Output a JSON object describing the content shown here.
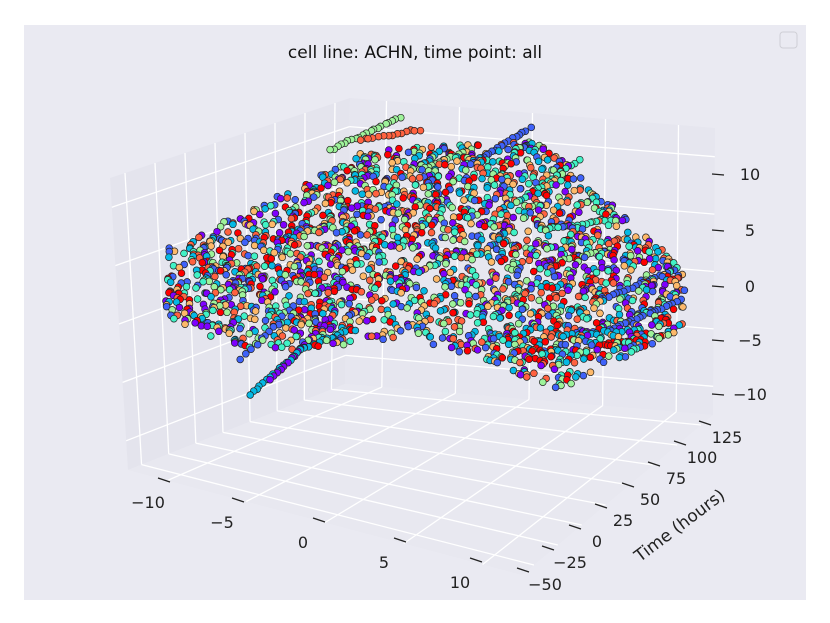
{
  "chart_data": {
    "type": "scatter",
    "subtype": "3d-scatter",
    "title": "cell line: ACHN, time point: all",
    "xlabel": "",
    "ylabel": "Time (hours)",
    "zlabel": "",
    "x_ticks": [
      "−10",
      "−5",
      "0",
      "5",
      "10"
    ],
    "y_ticks": [
      "−50",
      "−25",
      "0",
      "25",
      "50",
      "75",
      "100",
      "125"
    ],
    "z_ticks": [
      "10",
      "5",
      "0",
      "−5",
      "−10"
    ],
    "xlim": [
      -12,
      12
    ],
    "ylim": [
      -55,
      135
    ],
    "zlim": [
      -12,
      13
    ],
    "grid": true,
    "legend": "top-right (empty)",
    "colormap": [
      "#7f00ff",
      "#3f62f9",
      "#05b9e4",
      "#41f2c6",
      "#9ef39a",
      "#fdb96a",
      "#ff6240",
      "#ff0000"
    ],
    "marker_edge": "#222222",
    "background": "#eaeaf2",
    "pane_color": "#e5e5ee",
    "grid_color": "#ffffff"
  }
}
